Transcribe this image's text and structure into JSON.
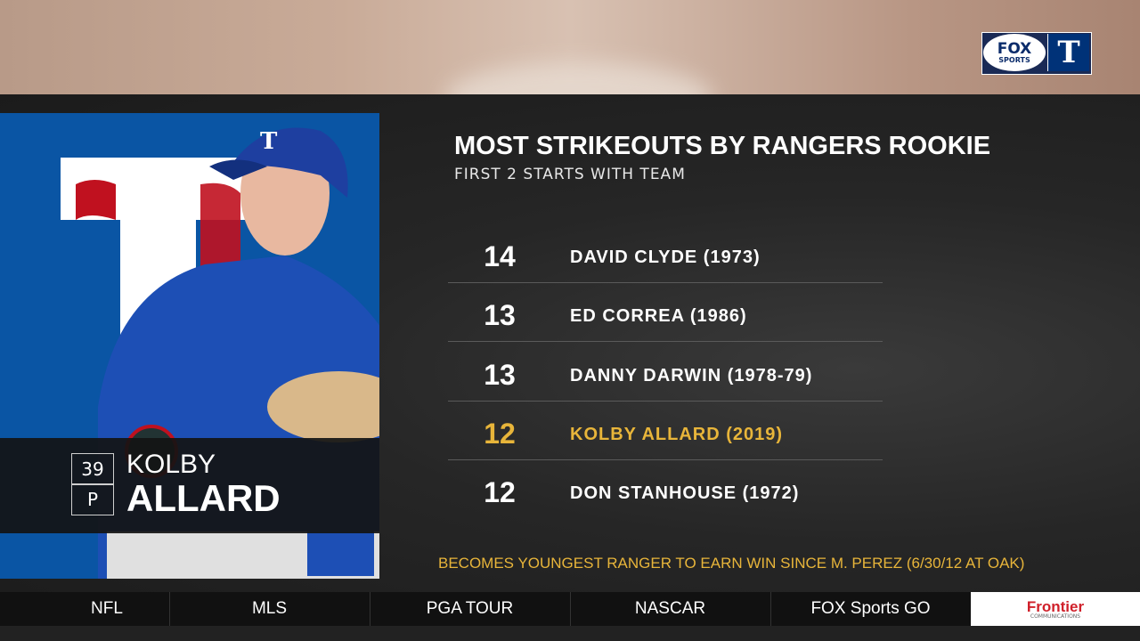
{
  "header": {
    "network_logo": [
      "FOX",
      "SPORTS"
    ],
    "team_logo": "T"
  },
  "player": {
    "number": "39",
    "position": "P",
    "first_name": "KOLBY",
    "last_name": "ALLARD"
  },
  "table": {
    "title": "MOST STRIKEOUTS BY RANGERS ROOKIE",
    "subtitle": "FIRST 2 STARTS WITH TEAM",
    "rows": [
      {
        "value": 14,
        "name": "DAVID CLYDE (1973)",
        "color": "#ffffff"
      },
      {
        "value": 13,
        "name": "ED CORREA (1986)",
        "color": "#ffffff"
      },
      {
        "value": 13,
        "name": "DANNY DARWIN (1978-79)",
        "color": "#ffffff"
      },
      {
        "value": 12,
        "name": "KOLBY ALLARD (2019)",
        "color": "#e8b53a"
      },
      {
        "value": 12,
        "name": "DON STANHOUSE (1972)",
        "color": "#ffffff"
      }
    ],
    "note": "BECOMES YOUNGEST RANGER TO EARN WIN SINCE M. PEREZ (6/30/12 AT OAK)"
  },
  "nav": {
    "items": [
      "NFL",
      "MLS",
      "PGA TOUR",
      "NASCAR",
      "FOX Sports GO"
    ],
    "sponsor": [
      "Frontier",
      "COMMUNICATIONS"
    ]
  }
}
